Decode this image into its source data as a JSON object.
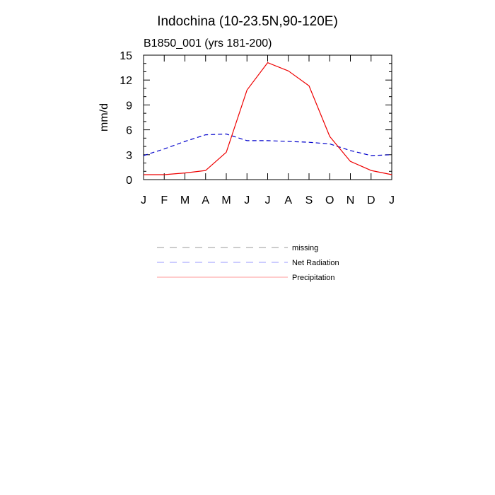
{
  "chart_data": {
    "type": "line",
    "title": "Indochina (10-23.5N,90-120E)",
    "subtitle": "B1850_001 (yrs 181-200)",
    "xlabel": "",
    "ylabel": "mm/d",
    "categories": [
      "J",
      "F",
      "M",
      "A",
      "M",
      "J",
      "J",
      "A",
      "S",
      "O",
      "N",
      "D",
      "J"
    ],
    "ylim": [
      0,
      15
    ],
    "yticks": [
      0,
      3,
      6,
      9,
      12,
      15
    ],
    "grid": false,
    "series": [
      {
        "name": "Net Radiation",
        "style": "dashed",
        "color": "#0000cc",
        "values": [
          2.9,
          3.7,
          4.6,
          5.4,
          5.5,
          4.7,
          4.7,
          4.6,
          4.5,
          4.3,
          3.5,
          2.9,
          3.0
        ]
      },
      {
        "name": "Precipitation",
        "style": "solid",
        "color": "#ee0000",
        "values": [
          0.6,
          0.6,
          0.8,
          1.1,
          3.3,
          10.8,
          14.1,
          13.1,
          11.3,
          5.2,
          2.2,
          1.1,
          0.6
        ]
      }
    ],
    "legend": {
      "placement": "below-plot",
      "entries": [
        {
          "label": "missing",
          "style": "dashed",
          "color": "#999999"
        },
        {
          "label": "Net Radiation",
          "style": "dashed",
          "color": "#9999ff"
        },
        {
          "label": "Precipitation",
          "style": "solid",
          "color": "#ff9999"
        }
      ]
    }
  }
}
